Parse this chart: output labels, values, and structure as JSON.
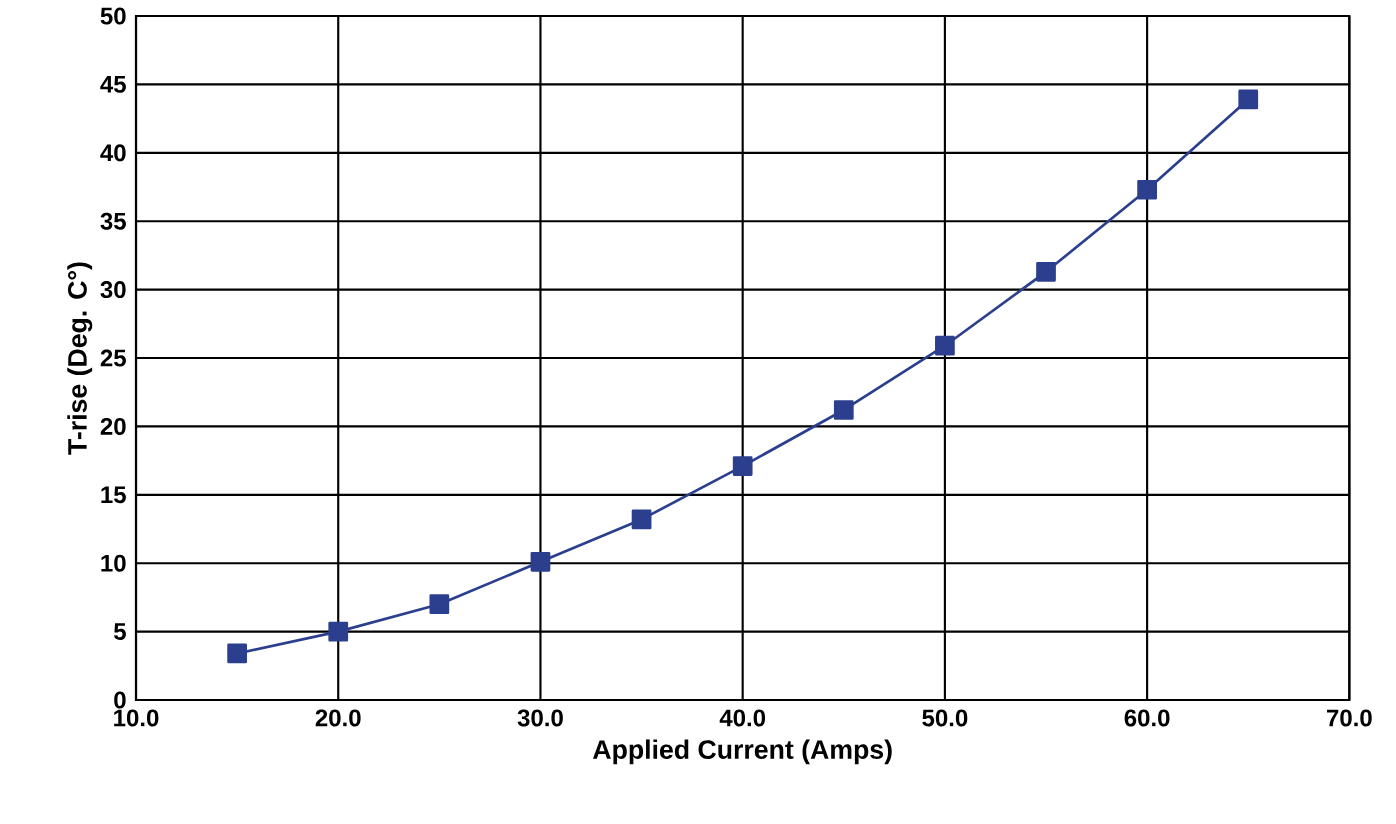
{
  "chart_data": {
    "type": "line",
    "xlabel": "Applied Current (Amps)",
    "ylabel": "T-rise (Deg. C°)",
    "x": [
      15,
      20,
      25,
      30,
      35,
      40,
      45,
      50,
      55,
      60,
      65
    ],
    "series": [
      {
        "color": "#2b3f8e",
        "values": [
          3.4,
          5.0,
          7.0,
          10.1,
          13.2,
          17.1,
          21.2,
          25.9,
          31.3,
          37.3,
          43.9
        ]
      }
    ],
    "xlim": [
      10,
      70
    ],
    "xticks": [
      {
        "value": 10,
        "label": "10.0"
      },
      {
        "value": 20,
        "label": "20.0"
      },
      {
        "value": 30,
        "label": "30.0"
      },
      {
        "value": 40,
        "label": "40.0"
      },
      {
        "value": 50,
        "label": "50.0"
      },
      {
        "value": 60,
        "label": "60.0"
      },
      {
        "value": 70,
        "label": "70.0"
      }
    ],
    "ylim": [
      0,
      50
    ],
    "yticks": [
      0,
      5,
      10,
      15,
      20,
      25,
      30,
      35,
      40,
      45,
      50
    ],
    "grid": true,
    "marker": "square",
    "line_style": "solid"
  }
}
